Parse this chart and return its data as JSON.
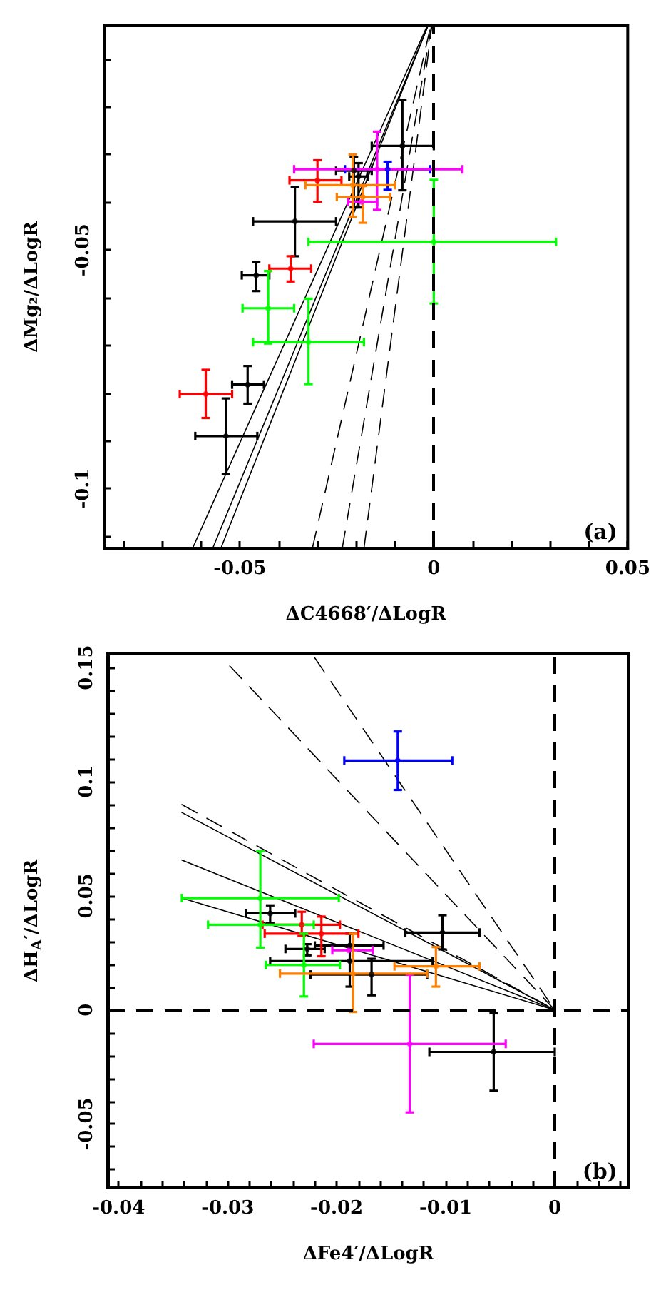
{
  "chart_data": [
    {
      "type": "scatter",
      "xlabel": "ΔC4668′/ΔLogR",
      "ylabel": "ΔMg₂/ΔLogR",
      "annotations": [
        "(a)"
      ],
      "xlim": [
        -0.085,
        0.05
      ],
      "ylim": [
        -0.1125,
        -0.003
      ],
      "xticks": [
        {
          "value": -0.08,
          "label": null
        },
        {
          "value": -0.07,
          "label": null
        },
        {
          "value": -0.06,
          "label": null
        },
        -0.05,
        {
          "value": -0.04,
          "label": null
        },
        {
          "value": -0.03,
          "label": null
        },
        {
          "value": -0.02,
          "label": null
        },
        {
          "value": -0.01,
          "label": null
        },
        0,
        {
          "value": 0.01,
          "label": null
        },
        {
          "value": 0.02,
          "label": null
        },
        {
          "value": 0.03,
          "label": null
        },
        {
          "value": 0.04,
          "label": null
        },
        0.05
      ],
      "yticks": [
        {
          "value": -0.11,
          "label": null
        },
        -0.1,
        {
          "value": -0.09,
          "label": null
        },
        {
          "value": -0.08,
          "label": null
        },
        {
          "value": -0.07,
          "label": null
        },
        {
          "value": -0.06,
          "label": null
        },
        -0.05,
        {
          "value": -0.04,
          "label": null
        },
        {
          "value": -0.03,
          "label": null
        },
        {
          "value": -0.02,
          "label": null
        },
        {
          "value": -0.01,
          "label": null
        }
      ],
      "grid": false,
      "marker": "circle",
      "ref_lines": [
        {
          "axis": "x",
          "value": 0,
          "line_style": "dashed",
          "color": "#000000"
        }
      ],
      "series": [
        {
          "color": "#000000",
          "x": [
            -0.0081,
            -0.0206,
            -0.0194,
            -0.0358,
            -0.0458,
            -0.048,
            -0.0536
          ],
          "values": [
            -0.0282,
            -0.0334,
            -0.0346,
            -0.044,
            -0.0553,
            -0.0782,
            -0.089
          ],
          "xerrors": [
            [
              -0.016,
              0
            ],
            [
              -0.0252,
              -0.016
            ],
            [
              -0.0218,
              -0.0171
            ],
            [
              -0.0466,
              -0.0252
            ],
            [
              -0.0495,
              -0.0424
            ],
            [
              -0.052,
              -0.0438
            ],
            [
              -0.0615,
              -0.0455
            ]
          ],
          "errors": [
            [
              -0.0375,
              -0.0185
            ],
            [
              -0.0411,
              -0.0305
            ],
            [
              -0.0411,
              -0.0318
            ],
            [
              -0.0513,
              -0.0368
            ],
            [
              -0.0586,
              -0.0525
            ],
            [
              -0.0822,
              -0.0743
            ],
            [
              -0.0969,
              -0.0811
            ]
          ]
        },
        {
          "color": "#ff0000",
          "x": [
            -0.03,
            -0.0369,
            -0.0588
          ],
          "values": [
            -0.0354,
            -0.0539,
            -0.0802
          ],
          "xerrors": [
            [
              -0.0372,
              -0.0238
            ],
            [
              -0.0424,
              -0.0316
            ],
            [
              -0.0655,
              -0.052
            ]
          ],
          "errors": [
            [
              -0.0399,
              -0.0312
            ],
            [
              -0.0566,
              -0.0513
            ],
            [
              -0.0852,
              -0.0751
            ]
          ]
        },
        {
          "color": "#00ff00",
          "x": [
            0,
            -0.0427,
            -0.0323
          ],
          "values": [
            -0.0483,
            -0.0622,
            -0.0693
          ],
          "xerrors": [
            [
              -0.0323,
              0.0315
            ],
            [
              -0.0493,
              -0.036
            ],
            [
              -0.0466,
              -0.018
            ]
          ],
          "errors": [
            [
              -0.0612,
              -0.0353
            ],
            [
              -0.0696,
              -0.0544
            ],
            [
              -0.0781,
              -0.0602
            ]
          ]
        },
        {
          "color": "#0000ff",
          "x": [
            -0.0119
          ],
          "values": [
            -0.0331
          ],
          "xerrors": [
            [
              -0.0229,
              -0.001
            ]
          ],
          "errors": [
            [
              -0.0374,
              -0.0315
            ]
          ]
        },
        {
          "color": "#ff00ff",
          "x": [
            -0.0146,
            -0.0186
          ],
          "values": [
            -0.0331,
            -0.0399
          ],
          "xerrors": [
            [
              -0.036,
              0.0074
            ],
            [
              -0.0221,
              -0.0146
            ]
          ],
          "errors": [
            [
              -0.0416,
              -0.0252
            ],
            null
          ]
        },
        {
          "color": "#ff8000",
          "x": [
            -0.0209,
            -0.0183
          ],
          "values": [
            -0.0364,
            -0.0389
          ],
          "xerrors": [
            [
              -0.0331,
              -0.01
            ],
            [
              -0.025,
              -0.0113
            ]
          ],
          "errors": [
            [
              -0.0431,
              -0.03
            ],
            [
              -0.0443,
              -0.0366
            ]
          ]
        },
        {
          "type": "line",
          "color": "#000000",
          "line_style": "solid",
          "marker": "none",
          "x": [
            -0.0622,
            -0.0017
          ],
          "values": [
            -0.1125,
            -0.003
          ]
        },
        {
          "type": "line",
          "color": "#000000",
          "line_style": "solid",
          "marker": "none",
          "x": [
            -0.057,
            -0.0015
          ],
          "values": [
            -0.1125,
            -0.003
          ]
        },
        {
          "type": "line",
          "color": "#000000",
          "line_style": "solid",
          "marker": "none",
          "x": [
            -0.0549,
            -0.0015
          ],
          "values": [
            -0.1125,
            -0.003
          ]
        },
        {
          "type": "line",
          "color": "#000000",
          "line_style": "dashed",
          "marker": "none",
          "x": [
            -0.0313,
            -0.0008
          ],
          "values": [
            -0.1125,
            -0.003
          ]
        },
        {
          "type": "line",
          "color": "#000000",
          "line_style": "dashed",
          "marker": "none",
          "x": [
            -0.0236,
            -0.0006
          ],
          "values": [
            -0.1125,
            -0.003
          ]
        },
        {
          "type": "line",
          "color": "#000000",
          "line_style": "dashed",
          "marker": "none",
          "x": [
            -0.018,
            -0.0005
          ],
          "values": [
            -0.1125,
            -0.003
          ]
        }
      ]
    },
    {
      "type": "scatter",
      "xlabel": "ΔFe4′/ΔLogR",
      "ylabel": "ΔH$_{A}$′/ΔLogR",
      "annotations": [
        "(b)"
      ],
      "xlim": [
        -0.041,
        0.0068
      ],
      "ylim": [
        -0.078,
        0.156
      ],
      "xticks": [
        -0.04,
        {
          "value": -0.038,
          "label": null
        },
        {
          "value": -0.036,
          "label": null
        },
        {
          "value": -0.034,
          "label": null
        },
        {
          "value": -0.032,
          "label": null
        },
        -0.03,
        {
          "value": -0.028,
          "label": null
        },
        {
          "value": -0.026,
          "label": null
        },
        {
          "value": -0.024,
          "label": null
        },
        {
          "value": -0.022,
          "label": null
        },
        -0.02,
        {
          "value": -0.018,
          "label": null
        },
        {
          "value": -0.016,
          "label": null
        },
        {
          "value": -0.014,
          "label": null
        },
        {
          "value": -0.012,
          "label": null
        },
        -0.01,
        {
          "value": -0.008,
          "label": null
        },
        {
          "value": -0.006,
          "label": null
        },
        {
          "value": -0.004,
          "label": null
        },
        {
          "value": -0.002,
          "label": null
        },
        0,
        {
          "value": 0.002,
          "label": null
        },
        {
          "value": 0.004,
          "label": null
        },
        {
          "value": 0.006,
          "label": null
        }
      ],
      "yticks": [
        {
          "value": -0.07,
          "label": null
        },
        {
          "value": -0.06,
          "label": null
        },
        -0.05,
        {
          "value": -0.04,
          "label": null
        },
        {
          "value": -0.03,
          "label": null
        },
        {
          "value": -0.02,
          "label": null
        },
        {
          "value": -0.01,
          "label": null
        },
        0,
        {
          "value": 0.01,
          "label": null
        },
        {
          "value": 0.02,
          "label": null
        },
        {
          "value": 0.03,
          "label": null
        },
        {
          "value": 0.04,
          "label": null
        },
        0.05,
        {
          "value": 0.06,
          "label": null
        },
        {
          "value": 0.07,
          "label": null
        },
        {
          "value": 0.08,
          "label": null
        },
        {
          "value": 0.09,
          "label": null
        },
        0.1,
        {
          "value": 0.11,
          "label": null
        },
        {
          "value": 0.12,
          "label": null
        },
        {
          "value": 0.13,
          "label": null
        },
        {
          "value": 0.14,
          "label": null
        },
        0.15
      ],
      "grid": false,
      "marker": "circle",
      "ref_lines": [
        {
          "axis": "x",
          "value": 0,
          "line_style": "dashed",
          "color": "#000000"
        },
        {
          "axis": "y",
          "value": 0,
          "line_style": "dashed",
          "color": "#000000"
        }
      ],
      "series": [
        {
          "color": "#000000",
          "x": [
            -0.0103,
            -0.0261,
            -0.0227,
            -0.0188,
            -0.0188,
            -0.0168,
            -0.0056
          ],
          "values": [
            0.0339,
            0.0423,
            0.0267,
            0.0282,
            0.0214,
            0.0155,
            -0.0184
          ],
          "xerrors": [
            [
              -0.0137,
              -0.0069
            ],
            [
              -0.0283,
              -0.0238
            ],
            [
              -0.0247,
              -0.0211
            ],
            [
              -0.022,
              -0.0157
            ],
            [
              -0.0261,
              -0.0112
            ],
            [
              -0.0224,
              -0.0117
            ],
            [
              -0.0115,
              0
            ]
          ],
          "errors": [
            [
              0.0265,
              0.0415
            ],
            [
              0.0381,
              0.0458
            ],
            [
              0.0239,
              0.0288
            ],
            [
              0.0102,
              0.0334
            ],
            null,
            [
              0.0064,
              0.0224
            ],
            [
              -0.0354,
              -0.0015
            ]
          ]
        },
        {
          "color": "#ff0000",
          "x": [
            -0.0232,
            -0.0214
          ],
          "values": [
            0.0373,
            0.0334
          ],
          "xerrors": [
            [
              -0.0268,
              -0.0197
            ],
            [
              -0.0266,
              -0.018
            ]
          ],
          "errors": [
            [
              0.0324,
              0.043
            ],
            [
              0.0235,
              0.0409
            ]
          ]
        },
        {
          "color": "#00ff00",
          "x": [
            -0.027,
            -0.027,
            -0.023
          ],
          "values": [
            0.049,
            0.0373,
            0.0197
          ],
          "xerrors": [
            [
              -0.0342,
              -0.0198
            ],
            [
              -0.0318,
              -0.0221
            ],
            [
              -0.0265,
              -0.0197
            ]
          ],
          "errors": [
            [
              0.0273,
              0.0695
            ],
            null,
            [
              0.0059,
              0.0334
            ]
          ]
        },
        {
          "color": "#0000ff",
          "x": [
            -0.0144
          ],
          "values": [
            0.1093
          ],
          "xerrors": [
            [
              -0.0193,
              -0.0094
            ]
          ],
          "errors": [
            [
              0.0964,
              0.122
            ]
          ]
        },
        {
          "color": "#ff00ff",
          "x": [
            -0.0189,
            -0.0133
          ],
          "values": [
            0.0261,
            -0.0149
          ],
          "xerrors": [
            [
              -0.0204,
              -0.0167
            ],
            [
              -0.0221,
              -0.0045
            ]
          ],
          "errors": [
            null,
            [
              -0.0449,
              0.0154
            ]
          ]
        },
        {
          "color": "#ff8000",
          "x": [
            -0.0185,
            -0.0109
          ],
          "values": [
            0.0159,
            0.0191
          ],
          "xerrors": [
            [
              -0.0252,
              -0.0117
            ],
            [
              -0.0147,
              -0.0069
            ]
          ],
          "errors": [
            [
              -0.0009,
              0.0334
            ],
            [
              0.0102,
              0.0275
            ]
          ]
        },
        {
          "type": "line",
          "color": "#000000",
          "line_style": "solid",
          "marker": "none",
          "x": [
            -0.0342,
            0
          ],
          "values": [
            0.0865,
            0
          ]
        },
        {
          "type": "line",
          "color": "#000000",
          "line_style": "solid",
          "marker": "none",
          "x": [
            -0.0342,
            0
          ],
          "values": [
            0.0657,
            0
          ]
        },
        {
          "type": "line",
          "color": "#000000",
          "line_style": "solid",
          "marker": "none",
          "x": [
            -0.0342,
            0
          ],
          "values": [
            0.049,
            0
          ]
        },
        {
          "type": "line",
          "color": "#000000",
          "line_style": "dashed",
          "marker": "none",
          "x": [
            -0.0342,
            0
          ],
          "values": [
            0.09,
            0
          ]
        },
        {
          "type": "line",
          "color": "#000000",
          "line_style": "dashed",
          "marker": "none",
          "x": [
            -0.0298,
            0
          ],
          "values": [
            0.1507,
            0
          ]
        },
        {
          "type": "line",
          "color": "#000000",
          "line_style": "dashed",
          "marker": "none",
          "x": [
            -0.022,
            0
          ],
          "values": [
            0.1542,
            0
          ]
        }
      ]
    }
  ]
}
